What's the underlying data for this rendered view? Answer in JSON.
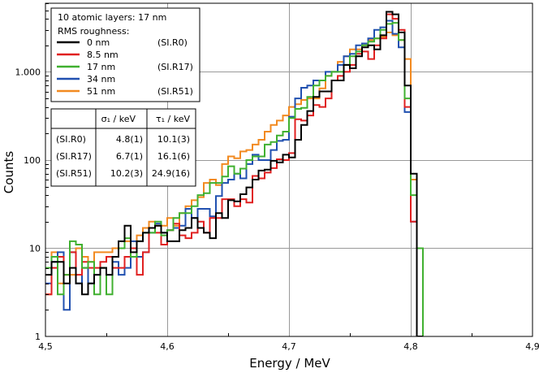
{
  "chart_data": {
    "type": "line",
    "step": true,
    "xlabel": "Energy / MeV",
    "ylabel": "Counts",
    "xlim": [
      4.5,
      4.9
    ],
    "ylim": [
      1,
      6000
    ],
    "yscale": "log",
    "xticks": [
      4.5,
      4.6,
      4.7,
      4.8,
      4.9
    ],
    "xtick_labels": [
      "4,5",
      "4,6",
      "4,7",
      "4,8",
      "4,9"
    ],
    "yticks": [
      1,
      10,
      100,
      1000
    ],
    "ytick_labels": [
      "1",
      "10",
      "100",
      "1.000"
    ],
    "grid": true,
    "bin_width": 0.005,
    "x_start": 4.5,
    "legend": {
      "title": "10 atomic layers: 17 nm",
      "subtitle": "RMS roughness:",
      "placement": "top-left",
      "entries": [
        {
          "label": "0 nm",
          "tag": "(SI.R0)"
        },
        {
          "label": "8.5 nm",
          "tag": ""
        },
        {
          "label": "17 nm",
          "tag": "(SI.R17)"
        },
        {
          "label": "34 nm",
          "tag": ""
        },
        {
          "label": "51 nm",
          "tag": "(SI.R51)"
        }
      ]
    },
    "series": [
      {
        "name": "0 nm",
        "color": "#000000",
        "values": [
          5,
          7,
          7,
          4,
          6,
          4,
          3,
          4,
          5,
          6,
          5,
          8,
          12,
          18,
          9,
          12,
          15,
          17,
          18,
          15,
          12,
          12,
          16,
          17,
          22,
          17,
          15,
          13,
          25,
          22,
          35,
          34,
          41,
          49,
          60,
          76,
          78,
          98,
          94,
          115,
          107,
          170,
          250,
          360,
          520,
          600,
          600,
          800,
          800,
          1200,
          1100,
          1500,
          1900,
          2000,
          1800,
          2600,
          4800,
          4500,
          2800,
          700,
          70,
          1
        ]
      },
      {
        "name": "8.5 nm",
        "color": "#e02020",
        "values": [
          3,
          6,
          8,
          5,
          9,
          5,
          7,
          6,
          6,
          7,
          8,
          6,
          6,
          8,
          10,
          5,
          9,
          17,
          15,
          11,
          16,
          19,
          14,
          13,
          15,
          20,
          15,
          22,
          22,
          36,
          36,
          30,
          36,
          33,
          66,
          62,
          72,
          81,
          102,
          100,
          120,
          290,
          280,
          320,
          420,
          400,
          500,
          800,
          900,
          1000,
          1200,
          1600,
          1700,
          1400,
          2000,
          2400,
          4500,
          4000,
          3000,
          400,
          20,
          1
        ]
      },
      {
        "name": "17 nm",
        "color": "#40b030",
        "values": [
          6,
          8,
          3,
          5,
          12,
          11,
          6,
          7,
          3,
          6,
          3,
          8,
          10,
          13,
          8,
          12,
          15,
          15,
          20,
          14,
          16,
          22,
          25,
          25,
          30,
          40,
          42,
          55,
          55,
          65,
          85,
          70,
          80,
          100,
          110,
          110,
          150,
          160,
          190,
          210,
          300,
          380,
          390,
          520,
          700,
          800,
          900,
          1000,
          1000,
          1200,
          1500,
          1700,
          2000,
          2200,
          2400,
          3000,
          3500,
          3600,
          2300,
          500,
          40,
          10
        ]
      },
      {
        "name": "34 nm",
        "color": "#2050b0",
        "values": [
          4,
          7,
          9,
          2,
          9,
          4,
          6,
          4,
          5,
          6,
          5,
          7,
          5,
          6,
          12,
          8,
          9,
          15,
          19,
          15,
          16,
          17,
          18,
          28,
          22,
          28,
          28,
          23,
          39,
          55,
          60,
          70,
          62,
          90,
          115,
          100,
          100,
          130,
          165,
          170,
          310,
          500,
          660,
          700,
          800,
          800,
          1000,
          1000,
          1200,
          1500,
          1600,
          2000,
          2100,
          2400,
          3000,
          3200,
          3800,
          2700,
          1900,
          350,
          20,
          1
        ]
      },
      {
        "name": "51 nm",
        "color": "#f28a20",
        "values": [
          3,
          9,
          4,
          5,
          5,
          10,
          8,
          7,
          9,
          9,
          9,
          10,
          10,
          12,
          12,
          14,
          17,
          20,
          18,
          18,
          22,
          18,
          25,
          30,
          35,
          38,
          55,
          60,
          52,
          90,
          110,
          105,
          125,
          130,
          150,
          170,
          210,
          250,
          280,
          320,
          400,
          430,
          480,
          500,
          500,
          650,
          900,
          1000,
          1300,
          1500,
          1800,
          1800,
          2000,
          2300,
          2400,
          2500,
          2800,
          2600,
          2300,
          1400,
          60,
          1
        ]
      }
    ],
    "table": {
      "headers": [
        "",
        "σ₁ / keV",
        "τ₁ / keV"
      ],
      "rows": [
        [
          "(SI.R0)",
          "4.8(1)",
          "10.1(3)"
        ],
        [
          "(SI.R17)",
          "6.7(1)",
          "16.1(6)"
        ],
        [
          "(SI.R51)",
          "10.2(3)",
          "24.9(16)"
        ]
      ]
    }
  }
}
